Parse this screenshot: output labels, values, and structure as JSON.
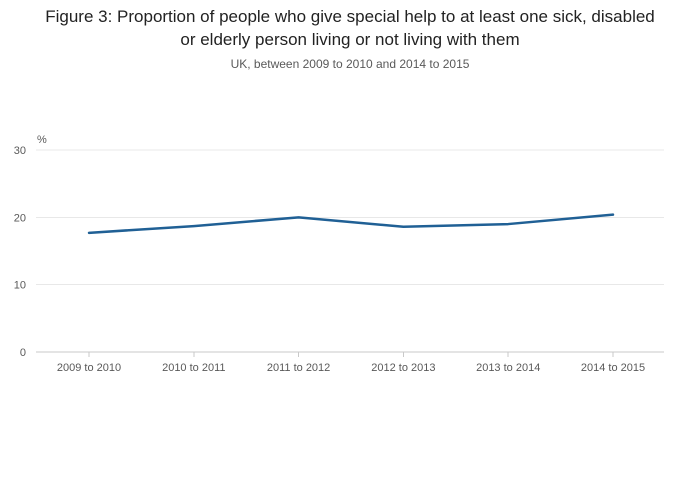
{
  "chart_data": {
    "type": "line",
    "title": "Figure 3: Proportion of people who give special help to at least one sick, disabled or elderly person living or not living with them",
    "subtitle": "UK, between 2009 to 2010 and 2014 to 2015",
    "categories": [
      "2009 to 2010",
      "2010 to 2011",
      "2011 to 2012",
      "2012 to 2013",
      "2013 to 2014",
      "2014 to 2015"
    ],
    "values": [
      17.7,
      18.7,
      20.0,
      18.6,
      19.0,
      20.4
    ],
    "xlabel": "",
    "ylabel": "%",
    "ylim": [
      0,
      30
    ],
    "yticks": [
      0,
      10,
      20,
      30
    ],
    "grid": true,
    "legend": "none",
    "line_color": "#206095",
    "gridline_color": "#e8e8e8",
    "axis_line_color": "#c9c9c9",
    "tick_label_color": "#595959"
  }
}
